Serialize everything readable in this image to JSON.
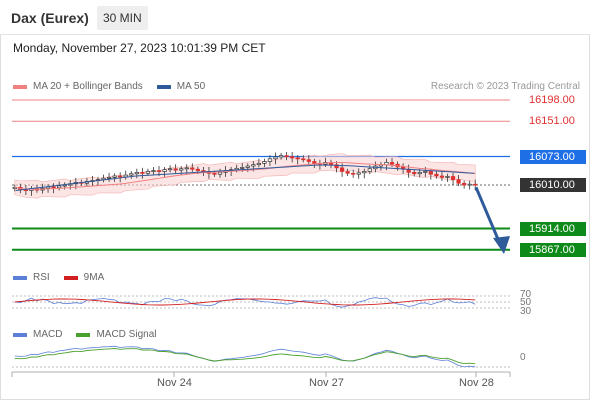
{
  "header": {
    "title": "Dax (Eurex)",
    "interval": "30 MIN"
  },
  "datetime": "Monday, November 27, 2023 10:01:39 PM CET",
  "legend": {
    "items": [
      {
        "label": "MA 20 + Bollinger Bands",
        "color": "#f28080"
      },
      {
        "label": "MA 50",
        "color": "#2f5b9b"
      }
    ],
    "credit": "Research © 2023 Trading Central"
  },
  "levels": [
    {
      "label": "16198.00",
      "value": 16198,
      "style": "resistance",
      "color": "#e03030"
    },
    {
      "label": "16151.00",
      "value": 16151,
      "style": "resistance",
      "color": "#e03030"
    },
    {
      "label": "16073.00",
      "value": 16073,
      "style": "pivot",
      "color": "#1e6ee6"
    },
    {
      "label": "16010.00",
      "value": 16010,
      "style": "last",
      "color": "#333333"
    },
    {
      "label": "15914.00",
      "value": 15914,
      "style": "support",
      "color": "#0e8a1a"
    },
    {
      "label": "15867.00",
      "value": 15867,
      "style": "support",
      "color": "#0e8a1a"
    }
  ],
  "rsi": {
    "legend": [
      {
        "label": "RSI",
        "color": "#5b7fd6"
      },
      {
        "label": "9MA",
        "color": "#d22020"
      }
    ],
    "ticks": [
      "70",
      "50",
      "30"
    ]
  },
  "macd": {
    "legend": [
      {
        "label": "MACD",
        "color": "#5b7fd6"
      },
      {
        "label": "MACD Signal",
        "color": "#4aa02c"
      }
    ],
    "ticks": [
      "0"
    ]
  },
  "x_axis": {
    "labels": [
      "Nov 24",
      "Nov 27",
      "Nov 28"
    ]
  },
  "chart_data": {
    "type": "candlestick",
    "instrument": "Dax (Eurex)",
    "interval": "30 MIN",
    "ylim": [
      15840,
      16220
    ],
    "closes": [
      16005,
      16000,
      15998,
      16002,
      15999,
      16003,
      16006,
      16004,
      16008,
      16010,
      16013,
      16016,
      16014,
      16018,
      16020,
      16022,
      16025,
      16027,
      16030,
      16028,
      16032,
      16035,
      16038,
      16036,
      16040,
      16042,
      16040,
      16044,
      16046,
      16043,
      16046,
      16048,
      16045,
      16042,
      16040,
      16036,
      16034,
      16038,
      16042,
      16044,
      16047,
      16049,
      16052,
      16055,
      16058,
      16062,
      16068,
      16072,
      16075,
      16073,
      16070,
      16068,
      16066,
      16062,
      16058,
      16056,
      16060,
      16055,
      16048,
      16040,
      16036,
      16034,
      16037,
      16040,
      16046,
      16052,
      16055,
      16060,
      16056,
      16050,
      16045,
      16038,
      16035,
      16038,
      16040,
      16034,
      16030,
      16027,
      16029,
      16022,
      16014,
      16010,
      16012,
      16010
    ],
    "ma50": [
      15998,
      16000,
      16002,
      16004,
      16006,
      16008,
      16010,
      16012,
      16014,
      16016,
      16018,
      16020,
      16022,
      16024,
      16026,
      16028,
      16030,
      16031,
      16032,
      16033,
      16034,
      16035,
      16036,
      16037,
      16038,
      16039,
      16040,
      16041,
      16042,
      16043,
      16044,
      16045,
      16046,
      16047,
      16048,
      16049,
      16050,
      16051,
      16052,
      16053,
      16054,
      16054,
      16054,
      16053,
      16053,
      16052,
      16051,
      16050,
      16049,
      16048,
      16047,
      16046,
      16045,
      16044,
      16043,
      16042,
      16041,
      16040,
      16039,
      16038,
      16037,
      16036
    ]
  }
}
